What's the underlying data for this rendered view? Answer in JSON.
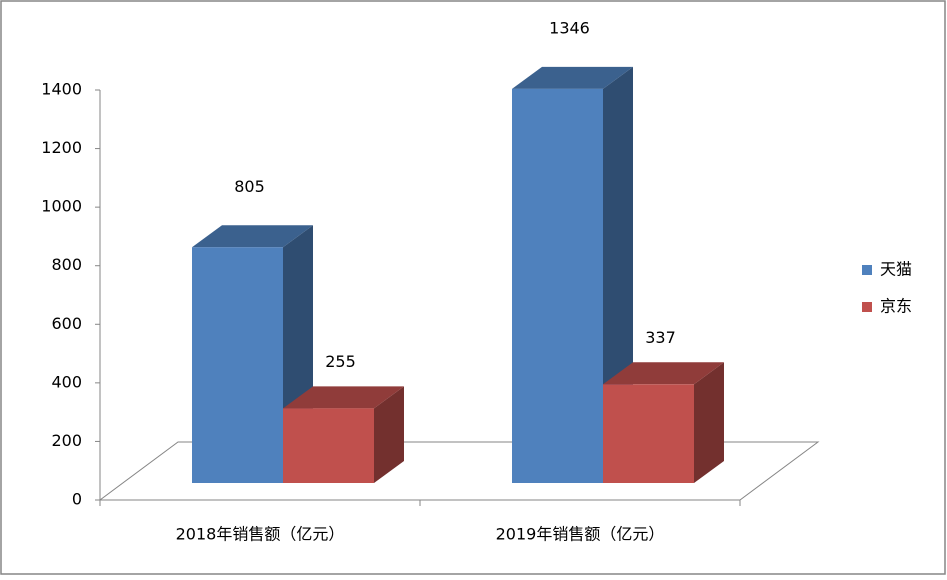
{
  "chart_data": {
    "type": "bar3d",
    "categories": [
      "2018年销售额（亿元）",
      "2019年销售额（亿元）"
    ],
    "series": [
      {
        "name": "天猫",
        "color": "#4f81bd",
        "values": [
          805,
          1346
        ]
      },
      {
        "name": "京东",
        "color": "#c0504d",
        "values": [
          255,
          337
        ]
      }
    ],
    "ylim": [
      0,
      1400
    ],
    "yticks": [
      0,
      200,
      400,
      600,
      800,
      1000,
      1200,
      1400
    ],
    "legend": "right"
  }
}
